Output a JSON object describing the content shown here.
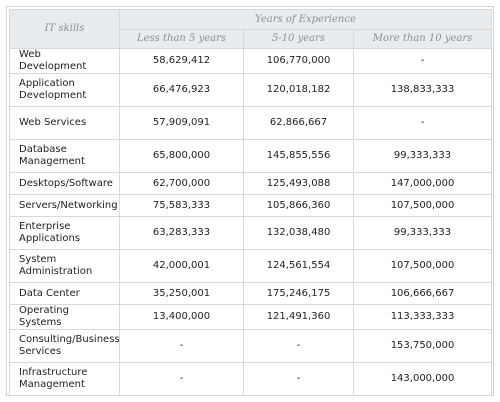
{
  "header": {
    "skills_label": "IT skills",
    "experience_label": "Years of Experience",
    "columns": [
      "Less than 5 years",
      "5-10 years",
      "More than 10 years"
    ]
  },
  "rows": [
    {
      "skill": "Web Development",
      "values": [
        "58,629,412",
        "106,770,000",
        "-"
      ]
    },
    {
      "skill": "Application Development",
      "values": [
        "66,476,923",
        "120,018,182",
        "138,833,333"
      ]
    },
    {
      "skill": "Web Services",
      "values": [
        "57,909,091",
        "62,866,667",
        "-"
      ]
    },
    {
      "skill": "Database Management",
      "values": [
        "65,800,000",
        "145,855,556",
        "99,333,333"
      ]
    },
    {
      "skill": "Desktops/Software",
      "values": [
        "62,700,000",
        "125,493,088",
        "147,000,000"
      ]
    },
    {
      "skill": "Servers/Networking",
      "values": [
        "75,583,333",
        "105,866,360",
        "107,500,000"
      ]
    },
    {
      "skill": "Enterprise Applications",
      "values": [
        "63,283,333",
        "132,038,480",
        "99,333,333"
      ]
    },
    {
      "skill": "System Administration",
      "values": [
        "42,000,001",
        "124,561,554",
        "107,500,000"
      ]
    },
    {
      "skill": "Data Center",
      "values": [
        "35,250,001",
        "175,246,175",
        "106,666,667"
      ]
    },
    {
      "skill": "Operating Systems",
      "values": [
        "13,400,000",
        "121,491,360",
        "113,333,333"
      ]
    },
    {
      "skill": "Consulting/Business Services",
      "values": [
        "-",
        "-",
        "153,750,000"
      ]
    },
    {
      "skill": "Infrastructure Management",
      "values": [
        "-",
        "-",
        "143,000,000"
      ]
    }
  ]
}
